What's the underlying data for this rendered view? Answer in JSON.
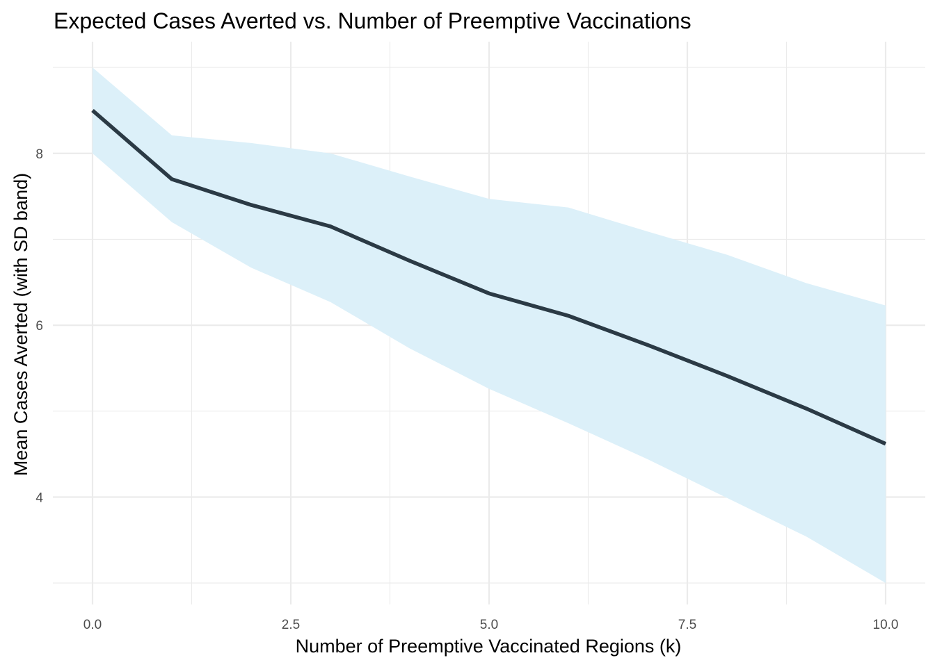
{
  "chart_data": {
    "type": "line",
    "title": "Expected Cases Averted vs. Number of Preemptive Vaccinations",
    "xlabel": "Number of Preemptive Vaccinated Regions (k)",
    "ylabel": "Mean Cases Averted (with SD band)",
    "xlim": [
      -0.5,
      10.5
    ],
    "ylim": [
      2.75,
      9.3
    ],
    "x_ticks": [
      0.0,
      2.5,
      5.0,
      7.5,
      10.0
    ],
    "x_tick_labels": [
      "0.0",
      "2.5",
      "5.0",
      "7.5",
      "10.0"
    ],
    "x_minor_ticks": [
      1.25,
      3.75,
      6.25,
      8.75
    ],
    "y_ticks": [
      4,
      6,
      8
    ],
    "y_tick_labels": [
      "4",
      "6",
      "8"
    ],
    "y_minor_ticks": [
      3,
      5,
      7,
      9
    ],
    "grid": true,
    "legend": "none",
    "series": [
      {
        "x": [
          0,
          1,
          2,
          3,
          4,
          5,
          6,
          7,
          8,
          9,
          10
        ],
        "values": [
          8.5,
          7.7,
          7.4,
          7.15,
          6.75,
          6.37,
          6.11,
          5.77,
          5.41,
          5.03,
          4.62
        ],
        "lower": [
          8.0,
          7.2,
          6.67,
          6.27,
          5.73,
          5.26,
          4.86,
          4.44,
          3.99,
          3.54,
          3.0
        ],
        "upper": [
          9.0,
          8.21,
          8.12,
          8.0,
          7.73,
          7.47,
          7.37,
          7.09,
          6.82,
          6.49,
          6.23
        ]
      }
    ],
    "colors": {
      "line": "#2b3a45",
      "band": "#dcf0f9",
      "grid": "#ebebeb",
      "tick_text": "#4d4d4d"
    }
  }
}
